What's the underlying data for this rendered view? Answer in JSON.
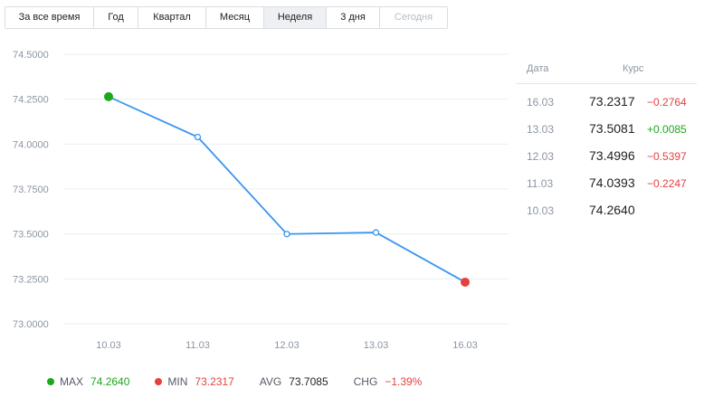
{
  "tabs": [
    {
      "label": "За все время",
      "state": "normal"
    },
    {
      "label": "Год",
      "state": "normal"
    },
    {
      "label": "Квартал",
      "state": "normal"
    },
    {
      "label": "Месяц",
      "state": "normal"
    },
    {
      "label": "Неделя",
      "state": "active"
    },
    {
      "label": "3 дня",
      "state": "normal"
    },
    {
      "label": "Сегодня",
      "state": "disabled"
    }
  ],
  "chart_data": {
    "type": "line",
    "categories": [
      "10.03",
      "11.03",
      "12.03",
      "13.03",
      "16.03"
    ],
    "values": [
      74.264,
      74.0393,
      73.4996,
      73.5081,
      73.2317
    ],
    "ylim": [
      73.0,
      74.5
    ],
    "yticks": [
      "74.5000",
      "74.2500",
      "74.0000",
      "73.7500",
      "73.5000",
      "73.2500",
      "73.0000"
    ],
    "ytick_values": [
      74.5,
      74.25,
      74.0,
      73.75,
      73.5,
      73.25,
      73.0
    ],
    "grid": true,
    "line_color": "#3a96f0",
    "max_marker_color": "#1ba81b",
    "min_marker_color": "#e5413e"
  },
  "stats": {
    "max_label": "MAX",
    "max_value": "74.2640",
    "min_label": "MIN",
    "min_value": "73.2317",
    "avg_label": "AVG",
    "avg_value": "73.7085",
    "chg_label": "CHG",
    "chg_value": "−1.39%"
  },
  "table": {
    "header_date": "Дата",
    "header_rate": "Курс",
    "rows": [
      {
        "date": "16.03",
        "value": "73.2317",
        "change": "−0.2764",
        "dir": "down"
      },
      {
        "date": "13.03",
        "value": "73.5081",
        "change": "+0.0085",
        "dir": "up"
      },
      {
        "date": "12.03",
        "value": "73.4996",
        "change": "−0.5397",
        "dir": "down"
      },
      {
        "date": "11.03",
        "value": "74.0393",
        "change": "−0.2247",
        "dir": "down"
      },
      {
        "date": "10.03",
        "value": "74.2640",
        "change": "",
        "dir": "none"
      }
    ]
  },
  "colors": {
    "up": "#1ba81b",
    "down": "#e5413e",
    "line": "#3a96f0"
  }
}
